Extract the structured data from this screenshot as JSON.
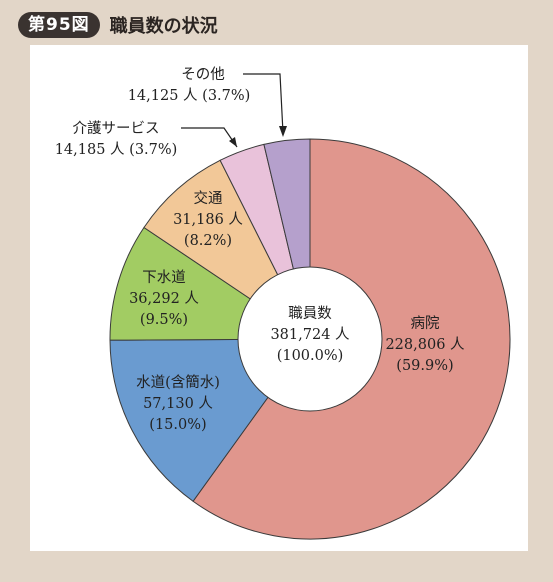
{
  "figure": {
    "number_label": "第95図",
    "title": "職員数の状況"
  },
  "chart_data": {
    "type": "pie",
    "subtype": "donut",
    "title": "職員数の状況",
    "center": {
      "title": "職員数",
      "value": "381,724 人",
      "percent": "(100.0%)"
    },
    "unit": "人",
    "slices": [
      {
        "name": "病院",
        "value": 228806,
        "value_label": "228,806 人",
        "percent_label": "(59.9%)",
        "color": "#e0968d"
      },
      {
        "name": "水道(含簡水)",
        "value": 57130,
        "value_label": "57,130 人",
        "percent_label": "(15.0%)",
        "color": "#6a9bd0"
      },
      {
        "name": "下水道",
        "value": 36292,
        "value_label": "36,292 人",
        "percent_label": "(9.5%)",
        "color": "#a2cc63"
      },
      {
        "name": "交通",
        "value": 31186,
        "value_label": "31,186 人",
        "percent_label": "(8.2%)",
        "color": "#f2c898"
      },
      {
        "name": "介護サービス",
        "value": 14185,
        "value_label": "14,185 人",
        "percent_label": "(3.7%)",
        "color": "#e9c2da"
      },
      {
        "name": "その他",
        "value": 14125,
        "value_label": "14,125 人",
        "percent_label": "(3.7%)",
        "color": "#b5a0cc"
      }
    ]
  }
}
